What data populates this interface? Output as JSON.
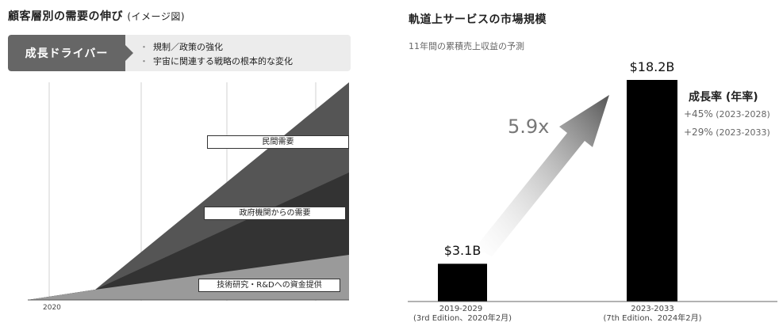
{
  "left": {
    "title": "顧客層別の需要の伸び",
    "title_suffix": "(イメージ図)",
    "driver_label": "成長ドライバー",
    "drivers": [
      "規制／政策の強化",
      "宇宙に関連する戦略の根本的な変化"
    ],
    "layers": [
      {
        "label": "民間需要",
        "color": "#555555"
      },
      {
        "label": "政府機関からの需要",
        "color": "#333333"
      },
      {
        "label": "技術研究・R&Dへの資金提供",
        "color": "#9a9a9a"
      }
    ],
    "x_start_label": "2020"
  },
  "right": {
    "title": "軌道上サービスの市場規模",
    "subtitle": "11年間の累積売上収益の予測",
    "multiplier": "5.9x",
    "growth_header": "成長率 (年率)",
    "growth_rates": [
      {
        "value": "+45%",
        "period": "(2023-2028)"
      },
      {
        "value": "+29%",
        "period": "(2023-2033)"
      }
    ]
  },
  "chart_data": [
    {
      "type": "area",
      "title": "顧客層別の需要の伸び (イメージ図)",
      "series": [
        {
          "name": "民間需要"
        },
        {
          "name": "政府機関からの需要"
        },
        {
          "name": "技術研究・R&Dへの資金提供"
        }
      ],
      "x_tick_labels": [
        "2020"
      ]
    },
    {
      "type": "bar",
      "title": "軌道上サービスの市場規模",
      "subtitle": "11年間の累積売上収益の予測",
      "categories": [
        "2019-2029",
        "2023-2033"
      ],
      "category_notes": [
        "(3rd Edition、2020年2月)",
        "(7th Edition、2024年2月)"
      ],
      "values": [
        3.1,
        18.2
      ],
      "value_labels": [
        "$3.1B",
        "$18.2B"
      ],
      "ylabel": "",
      "ylim": [
        0,
        20
      ]
    }
  ]
}
